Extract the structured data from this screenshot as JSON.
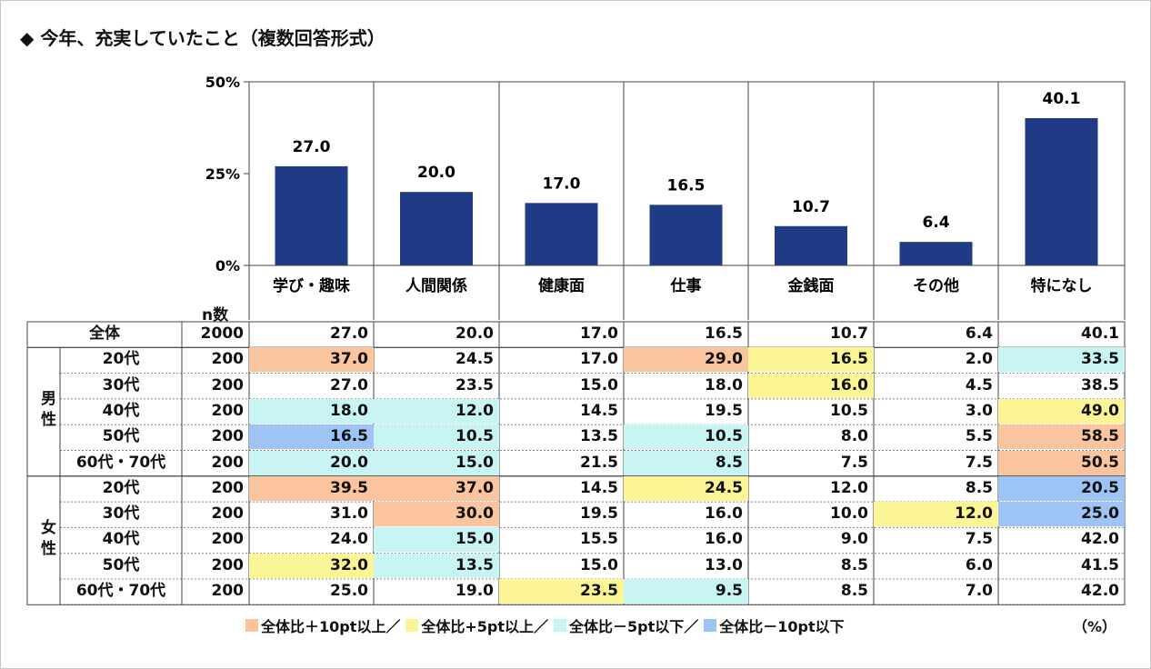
{
  "title": "◆ 今年、充実していたこと（複数回答形式）",
  "n_label": "n数",
  "unit_label": "（%）",
  "colors": {
    "bar": "#1f3b86",
    "plus10": "#f9c49e",
    "plus5": "#fcf596",
    "minus5": "#c9f4f4",
    "minus10": "#9ec3f5"
  },
  "legend": [
    {
      "key": "plus10",
      "label": "全体比＋10pt以上／"
    },
    {
      "key": "plus5",
      "label": "全体比+5pt以上／"
    },
    {
      "key": "minus5",
      "label": "全体比－5pt以下／"
    },
    {
      "key": "minus10",
      "label": "全体比－10pt以下"
    }
  ],
  "chart_data": {
    "type": "bar",
    "categories": [
      "学び・趣味",
      "人間関係",
      "健康面",
      "仕事",
      "金銭面",
      "その他",
      "特になし"
    ],
    "values": [
      27.0,
      20.0,
      17.0,
      16.5,
      10.7,
      6.4,
      40.1
    ],
    "value_labels": [
      "27.0",
      "20.0",
      "17.0",
      "16.5",
      "10.7",
      "6.4",
      "40.1"
    ],
    "ylim": [
      0,
      50
    ],
    "yticks": [
      "0%",
      "25%",
      "50%"
    ],
    "ytick_values": [
      0,
      25,
      50
    ]
  },
  "table": {
    "total": {
      "label": "全体",
      "n": "2000",
      "values": [
        "27.0",
        "20.0",
        "17.0",
        "16.5",
        "10.7",
        "6.4",
        "40.1"
      ]
    },
    "groups": [
      {
        "label": "男性",
        "rows": [
          {
            "label": "20代",
            "n": "200",
            "values": [
              "37.0",
              "24.5",
              "17.0",
              "29.0",
              "16.5",
              "2.0",
              "33.5"
            ],
            "hl": [
              "plus10",
              "",
              "",
              "plus10",
              "plus5",
              "",
              "minus5"
            ]
          },
          {
            "label": "30代",
            "n": "200",
            "values": [
              "27.0",
              "23.5",
              "15.0",
              "18.0",
              "16.0",
              "4.5",
              "38.5"
            ],
            "hl": [
              "",
              "",
              "",
              "",
              "plus5",
              "",
              ""
            ]
          },
          {
            "label": "40代",
            "n": "200",
            "values": [
              "18.0",
              "12.0",
              "14.5",
              "19.5",
              "10.5",
              "3.0",
              "49.0"
            ],
            "hl": [
              "minus5",
              "minus5",
              "",
              "",
              "",
              "",
              "plus5"
            ]
          },
          {
            "label": "50代",
            "n": "200",
            "values": [
              "16.5",
              "10.5",
              "13.5",
              "10.5",
              "8.0",
              "5.5",
              "58.5"
            ],
            "hl": [
              "minus10",
              "minus5",
              "",
              "minus5",
              "",
              "",
              "plus10"
            ]
          },
          {
            "label": "60代・70代",
            "n": "200",
            "values": [
              "20.0",
              "15.0",
              "21.5",
              "8.5",
              "7.5",
              "7.5",
              "50.5"
            ],
            "hl": [
              "minus5",
              "minus5",
              "",
              "minus5",
              "",
              "",
              "plus10"
            ]
          }
        ]
      },
      {
        "label": "女性",
        "rows": [
          {
            "label": "20代",
            "n": "200",
            "values": [
              "39.5",
              "37.0",
              "14.5",
              "24.5",
              "12.0",
              "8.5",
              "20.5"
            ],
            "hl": [
              "plus10",
              "plus10",
              "",
              "plus5",
              "",
              "",
              "minus10"
            ]
          },
          {
            "label": "30代",
            "n": "200",
            "values": [
              "31.0",
              "30.0",
              "19.5",
              "16.0",
              "10.0",
              "12.0",
              "25.0"
            ],
            "hl": [
              "",
              "plus10",
              "",
              "",
              "",
              "plus5",
              "minus10"
            ]
          },
          {
            "label": "40代",
            "n": "200",
            "values": [
              "24.0",
              "15.0",
              "15.5",
              "16.0",
              "9.0",
              "7.5",
              "42.0"
            ],
            "hl": [
              "",
              "minus5",
              "",
              "",
              "",
              "",
              ""
            ]
          },
          {
            "label": "50代",
            "n": "200",
            "values": [
              "32.0",
              "13.5",
              "15.0",
              "13.0",
              "8.5",
              "6.0",
              "41.5"
            ],
            "hl": [
              "plus5",
              "minus5",
              "",
              "",
              "",
              "",
              ""
            ]
          },
          {
            "label": "60代・70代",
            "n": "200",
            "values": [
              "25.0",
              "19.0",
              "23.5",
              "9.5",
              "8.5",
              "7.0",
              "42.0"
            ],
            "hl": [
              "",
              "",
              "plus5",
              "minus5",
              "",
              "",
              ""
            ]
          }
        ]
      }
    ]
  }
}
